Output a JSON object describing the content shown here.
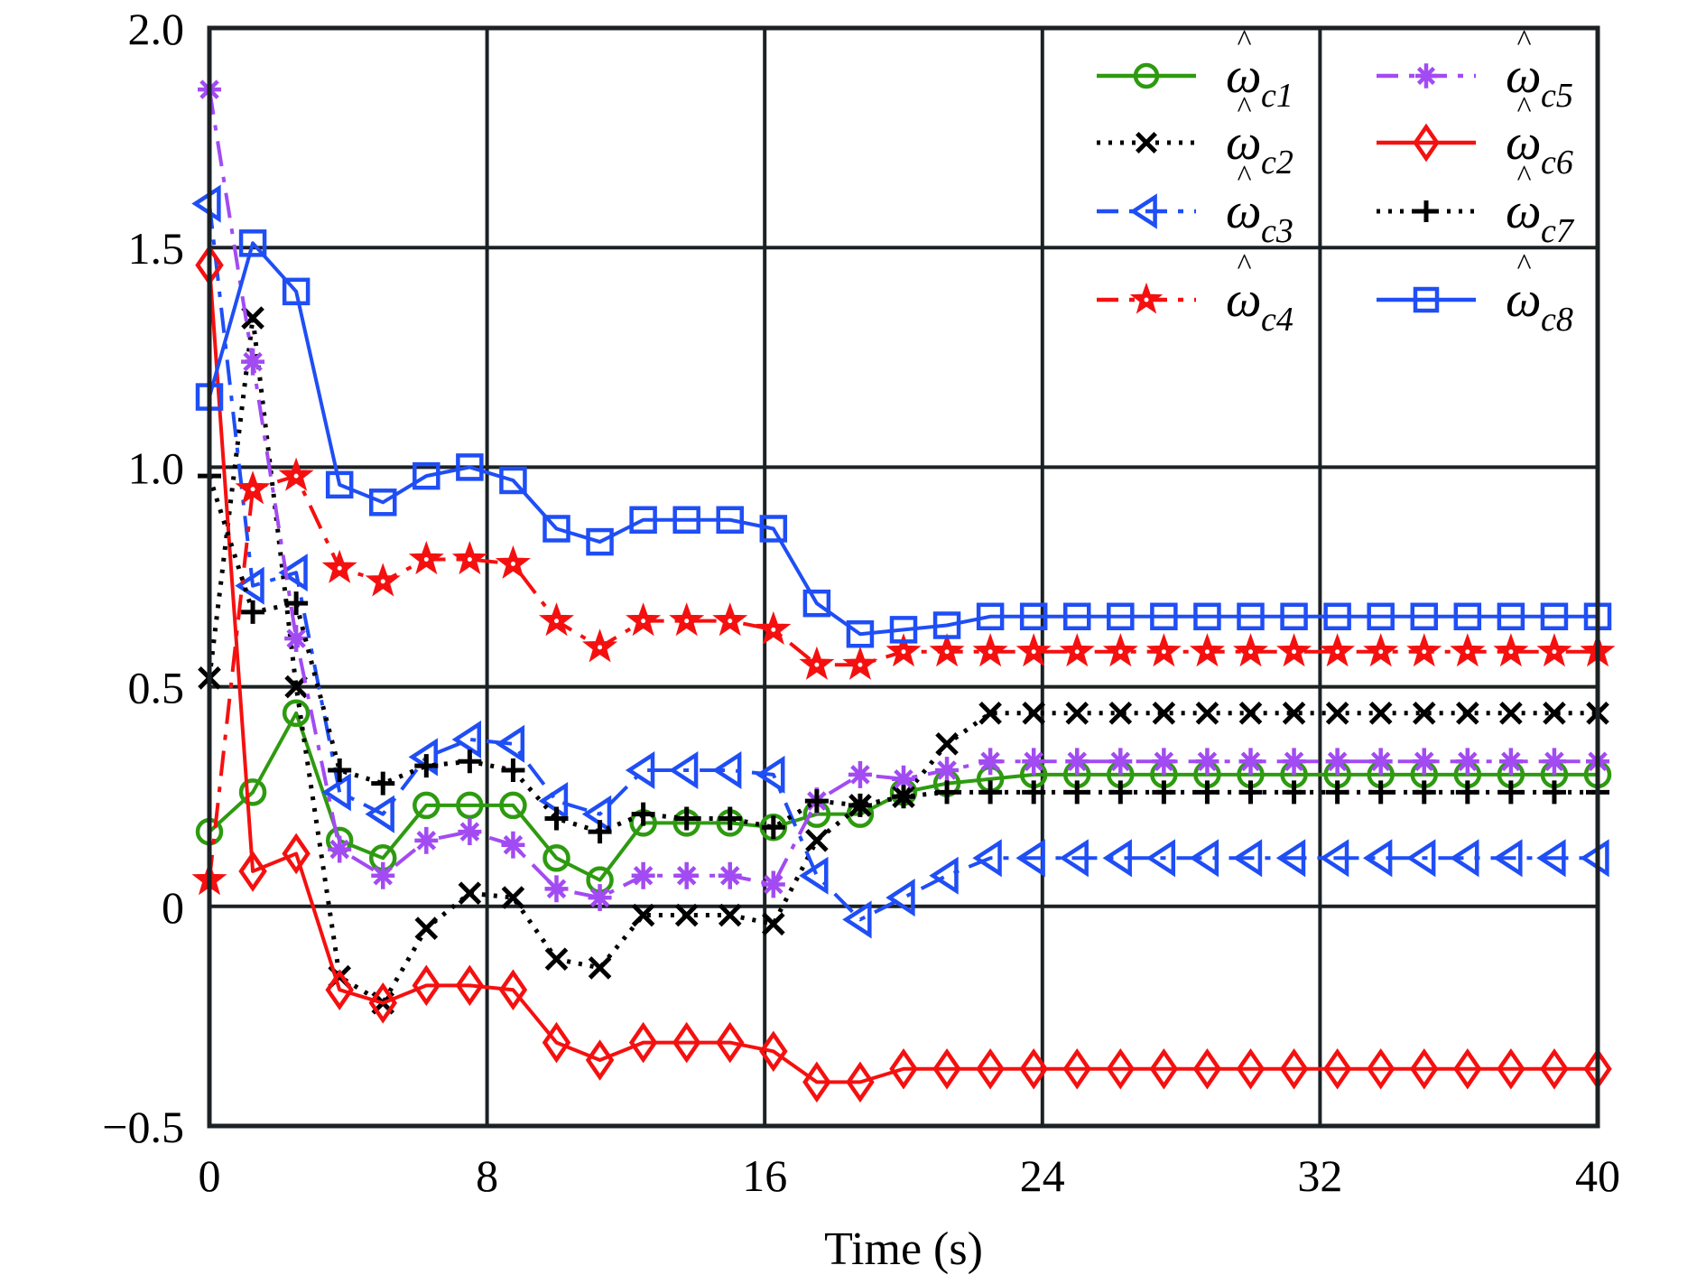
{
  "chart_data": {
    "type": "line",
    "title": "",
    "xlabel": "Time (s)",
    "ylabel": "",
    "xlim": [
      0,
      40
    ],
    "ylim": [
      -0.5,
      2.0
    ],
    "xticks": [
      0,
      8,
      16,
      24,
      32,
      40
    ],
    "xtick_labels": [
      "0",
      "8",
      "16",
      "24",
      "32",
      "40"
    ],
    "yticks": [
      -0.5,
      0,
      0.5,
      1.0,
      1.5,
      2.0
    ],
    "ytick_labels": [
      "−0.5",
      "0",
      "0.5",
      "1.0",
      "1.5",
      "2.0"
    ],
    "grid": true,
    "legend_position": "top-right",
    "legend_columns": 2,
    "x": [
      0,
      1.25,
      2.5,
      3.75,
      5,
      6.25,
      7.5,
      8.75,
      10,
      11.25,
      12.5,
      13.75,
      15,
      16.25,
      17.5,
      18.75,
      20,
      21.25,
      22.5,
      23.75,
      25,
      26.25,
      27.5,
      28.75,
      30,
      31.25,
      32.5,
      33.75,
      35,
      36.25,
      37.5,
      38.75,
      40
    ],
    "series": [
      {
        "name": "ω̂c1",
        "symbol": "ω",
        "subscript": "c1",
        "color": "#2e9a10",
        "line": "solid",
        "marker": "circle",
        "values": [
          0.17,
          0.26,
          0.44,
          0.15,
          0.11,
          0.23,
          0.23,
          0.23,
          0.11,
          0.06,
          0.19,
          0.19,
          0.19,
          0.18,
          0.21,
          0.21,
          0.26,
          0.28,
          0.29,
          0.3,
          0.3,
          0.3,
          0.3,
          0.3,
          0.3,
          0.3,
          0.3,
          0.3,
          0.3,
          0.3,
          0.3,
          0.3,
          0.3
        ]
      },
      {
        "name": "ω̂c2",
        "symbol": "ω",
        "subscript": "c2",
        "color": "#000000",
        "line": "dotted",
        "marker": "x",
        "values": [
          0.52,
          1.34,
          0.5,
          -0.16,
          -0.22,
          -0.05,
          0.03,
          0.02,
          -0.12,
          -0.14,
          -0.02,
          -0.02,
          -0.02,
          -0.04,
          0.15,
          0.23,
          0.25,
          0.37,
          0.44,
          0.44,
          0.44,
          0.44,
          0.44,
          0.44,
          0.44,
          0.44,
          0.44,
          0.44,
          0.44,
          0.44,
          0.44,
          0.44,
          0.44
        ]
      },
      {
        "name": "ω̂c3",
        "symbol": "ω",
        "subscript": "c3",
        "color": "#1f4ef5",
        "line": "dashdot",
        "marker": "triangle-left",
        "values": [
          1.6,
          0.73,
          0.76,
          0.26,
          0.21,
          0.34,
          0.38,
          0.37,
          0.24,
          0.21,
          0.31,
          0.31,
          0.31,
          0.3,
          0.07,
          -0.03,
          0.02,
          0.07,
          0.11,
          0.11,
          0.11,
          0.11,
          0.11,
          0.11,
          0.11,
          0.11,
          0.11,
          0.11,
          0.11,
          0.11,
          0.11,
          0.11,
          0.11
        ]
      },
      {
        "name": "ω̂c4",
        "symbol": "ω",
        "subscript": "c4",
        "color": "#f51010",
        "line": "dashdot",
        "marker": "star",
        "values": [
          0.06,
          0.95,
          0.98,
          0.77,
          0.74,
          0.79,
          0.79,
          0.78,
          0.65,
          0.59,
          0.65,
          0.65,
          0.65,
          0.63,
          0.55,
          0.55,
          0.58,
          0.58,
          0.58,
          0.58,
          0.58,
          0.58,
          0.58,
          0.58,
          0.58,
          0.58,
          0.58,
          0.58,
          0.58,
          0.58,
          0.58,
          0.58,
          0.58
        ]
      },
      {
        "name": "ω̂c5",
        "symbol": "ω",
        "subscript": "c5",
        "color": "#a24bf2",
        "line": "dashdot",
        "marker": "asterisk",
        "values": [
          1.86,
          1.24,
          0.61,
          0.13,
          0.07,
          0.15,
          0.17,
          0.14,
          0.04,
          0.02,
          0.07,
          0.07,
          0.07,
          0.05,
          0.24,
          0.3,
          0.29,
          0.31,
          0.33,
          0.33,
          0.33,
          0.33,
          0.33,
          0.33,
          0.33,
          0.33,
          0.33,
          0.33,
          0.33,
          0.33,
          0.33,
          0.33,
          0.33
        ]
      },
      {
        "name": "ω̂c6",
        "symbol": "ω",
        "subscript": "c6",
        "color": "#f51010",
        "line": "solid",
        "marker": "diamond",
        "values": [
          1.46,
          0.08,
          0.12,
          -0.19,
          -0.22,
          -0.18,
          -0.18,
          -0.19,
          -0.31,
          -0.35,
          -0.31,
          -0.31,
          -0.31,
          -0.33,
          -0.4,
          -0.4,
          -0.37,
          -0.37,
          -0.37,
          -0.37,
          -0.37,
          -0.37,
          -0.37,
          -0.37,
          -0.37,
          -0.37,
          -0.37,
          -0.37,
          -0.37,
          -0.37,
          -0.37,
          -0.37,
          -0.37
        ]
      },
      {
        "name": "ω̂c7",
        "symbol": "ω",
        "subscript": "c7",
        "color": "#000000",
        "line": "dotted",
        "marker": "plus",
        "values": [
          0.98,
          0.67,
          0.69,
          0.31,
          0.28,
          0.32,
          0.33,
          0.31,
          0.2,
          0.17,
          0.21,
          0.2,
          0.2,
          0.18,
          0.24,
          0.23,
          0.25,
          0.26,
          0.26,
          0.26,
          0.26,
          0.26,
          0.26,
          0.26,
          0.26,
          0.26,
          0.26,
          0.26,
          0.26,
          0.26,
          0.26,
          0.26,
          0.26
        ]
      },
      {
        "name": "ω̂c8",
        "symbol": "ω",
        "subscript": "c8",
        "color": "#1f4ef5",
        "line": "solid",
        "marker": "square",
        "values": [
          1.16,
          1.51,
          1.4,
          0.96,
          0.92,
          0.98,
          1.0,
          0.97,
          0.86,
          0.83,
          0.88,
          0.88,
          0.88,
          0.86,
          0.69,
          0.62,
          0.63,
          0.64,
          0.66,
          0.66,
          0.66,
          0.66,
          0.66,
          0.66,
          0.66,
          0.66,
          0.66,
          0.66,
          0.66,
          0.66,
          0.66,
          0.66,
          0.66
        ]
      }
    ]
  }
}
